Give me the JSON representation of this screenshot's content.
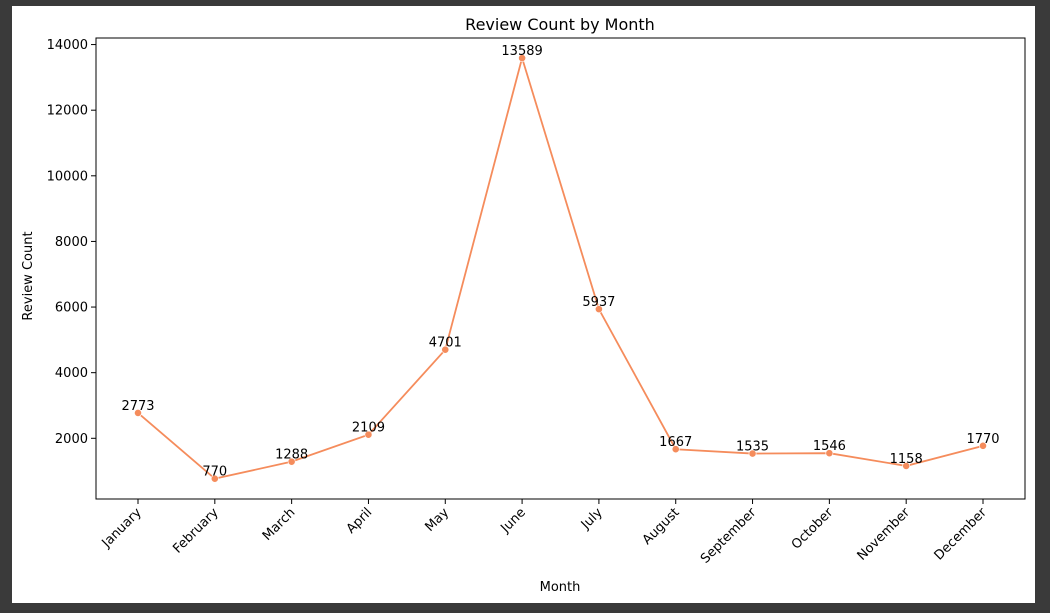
{
  "chart_data": {
    "type": "line",
    "title": "Review Count by Month",
    "xlabel": "Month",
    "ylabel": "Review Count",
    "categories": [
      "January",
      "February",
      "March",
      "April",
      "May",
      "June",
      "July",
      "August",
      "September",
      "October",
      "November",
      "December"
    ],
    "values": [
      2773,
      770,
      1288,
      2109,
      4701,
      13589,
      5937,
      1667,
      1535,
      1546,
      1158,
      1770
    ],
    "yticks": [
      2000,
      4000,
      6000,
      8000,
      10000,
      12000,
      14000
    ],
    "ylim": [
      150,
      14200
    ],
    "grid": false,
    "line_color": "#f58c5c",
    "marker": "circle",
    "data_labels": true
  }
}
